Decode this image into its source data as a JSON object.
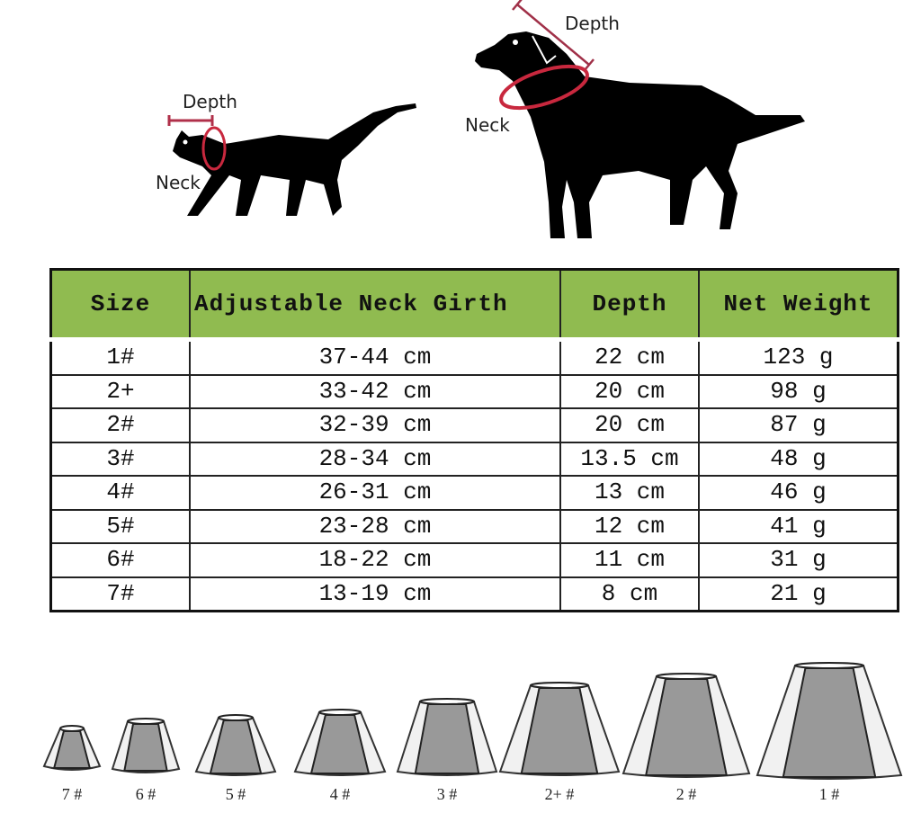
{
  "diagram": {
    "cat": {
      "depth_label": "Depth",
      "neck_label": "Neck"
    },
    "dog": {
      "depth_label": "Depth",
      "neck_label": "Neck"
    },
    "accent_color": "#c8283e"
  },
  "size_table": {
    "header_color": "#90bb50",
    "headers": [
      "Size",
      "Adjustable Neck Girth",
      "Depth",
      "Net Weight"
    ],
    "rows": [
      [
        "1#",
        "37-44 cm",
        "22 cm",
        "123 g"
      ],
      [
        "2+",
        "33-42 cm",
        "20 cm",
        "98 g"
      ],
      [
        "2#",
        "32-39 cm",
        "20 cm",
        "87 g"
      ],
      [
        "3#",
        "28-34 cm",
        "13.5 cm",
        "48 g"
      ],
      [
        "4#",
        "26-31 cm",
        "13 cm",
        "46 g"
      ],
      [
        "5#",
        "23-28 cm",
        "12 cm",
        "41 g"
      ],
      [
        "6#",
        "18-22 cm",
        "11 cm",
        "31 g"
      ],
      [
        "7#",
        "13-19 cm",
        "8 cm",
        "21 g"
      ]
    ]
  },
  "cones": [
    "7 #",
    "6 #",
    "5 #",
    "4 #",
    "3 #",
    "2+ #",
    "2 #",
    "1 #"
  ]
}
